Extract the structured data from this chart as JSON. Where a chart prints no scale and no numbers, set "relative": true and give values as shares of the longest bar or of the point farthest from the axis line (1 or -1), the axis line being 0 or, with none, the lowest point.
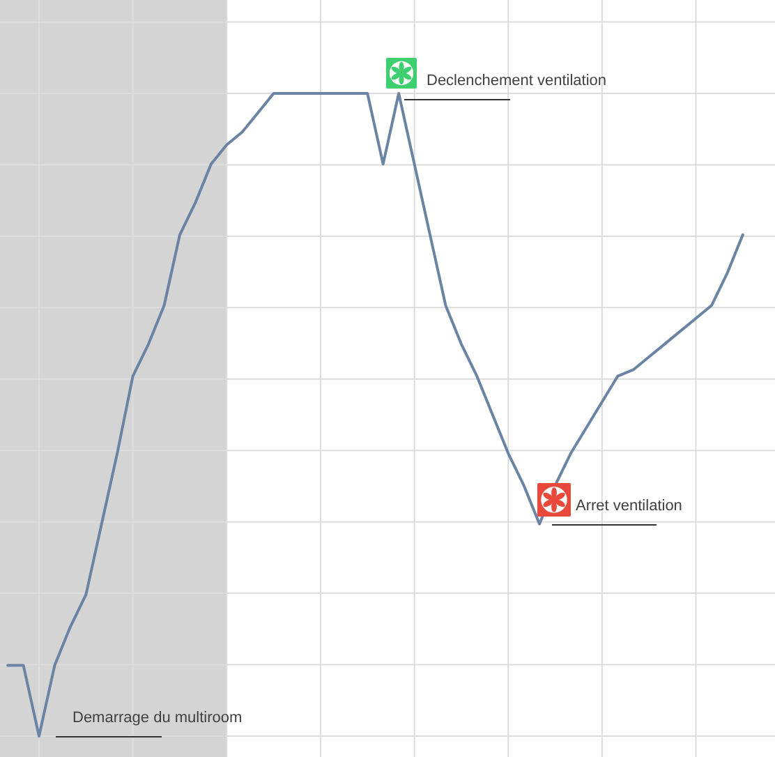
{
  "chart_data": {
    "type": "line",
    "relative": true,
    "grid": true,
    "categories": [
      null,
      null,
      null,
      null,
      null,
      null,
      null,
      null,
      null,
      null,
      null,
      null,
      null,
      null,
      null,
      null,
      null,
      null,
      null,
      null,
      null,
      null,
      null,
      null,
      null,
      null,
      null,
      null,
      null,
      null,
      null,
      null,
      null,
      null,
      null,
      null,
      null,
      null,
      null,
      null,
      null,
      null,
      null,
      null,
      null,
      null,
      null,
      null
    ],
    "series": [
      {
        "color": "#6b84a3",
        "values": [
          0.11,
          0.11,
          0,
          0.11,
          0.17,
          0.22,
          0.33,
          0.44,
          0.56,
          0.61,
          0.67,
          0.78,
          0.83,
          0.89,
          0.92,
          0.94,
          0.97,
          1,
          1,
          1,
          1,
          1,
          1,
          1,
          0.89,
          1,
          0.89,
          0.78,
          0.67,
          0.61,
          0.56,
          0.5,
          0.44,
          0.39,
          0.33,
          0.39,
          0.44,
          0.48,
          0.52,
          0.56,
          0.57,
          0.59,
          0.61,
          0.63,
          0.65,
          0.67,
          0.72,
          0.78
        ]
      }
    ],
    "annotations": [
      "Demarrage du multiroom",
      "Declenchement ventilation",
      "Arret ventilation"
    ]
  }
}
